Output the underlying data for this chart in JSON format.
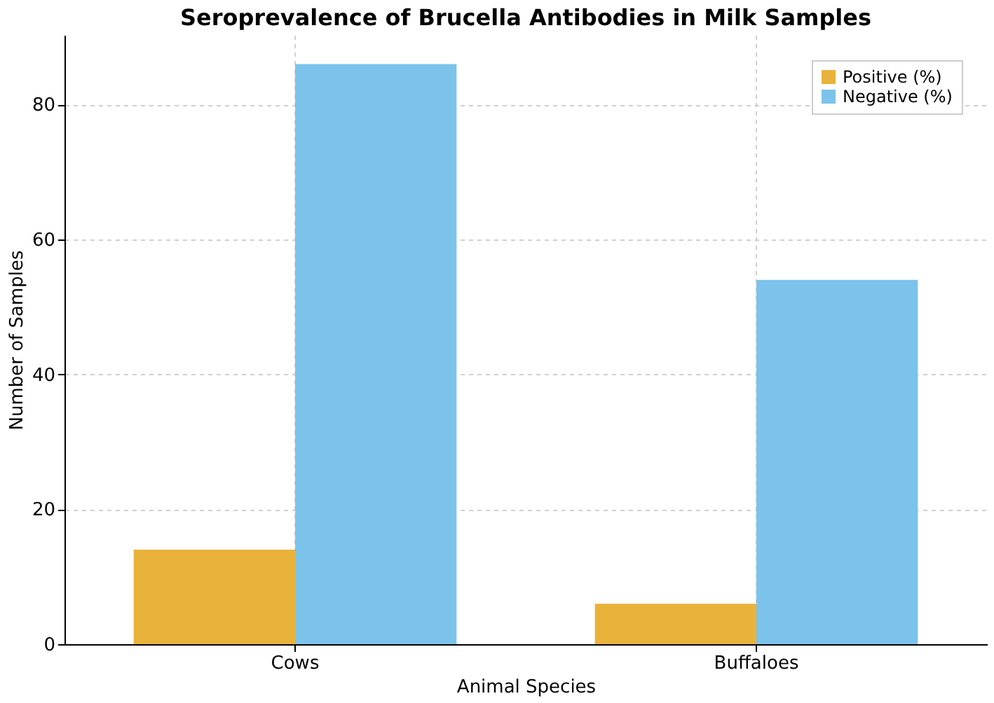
{
  "chart_data": {
    "type": "bar",
    "title": "Seroprevalence of Brucella Antibodies in Milk Samples",
    "xlabel": "Animal Species",
    "ylabel": "Number of Samples",
    "categories": [
      "Cows",
      "Buffaloes"
    ],
    "series": [
      {
        "name": "Positive (%)",
        "color": "#e9b23a",
        "values": [
          14,
          6
        ]
      },
      {
        "name": "Negative (%)",
        "color": "#7bc3eb",
        "values": [
          86,
          54
        ]
      }
    ],
    "ylim": [
      0,
      90.3
    ],
    "yticks": [
      0,
      20,
      40,
      60,
      80
    ],
    "grid": true,
    "legend": "top right"
  }
}
